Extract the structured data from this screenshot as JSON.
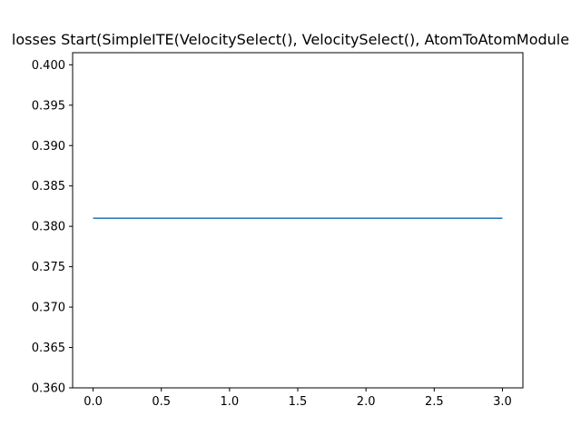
{
  "chart_data": {
    "type": "line",
    "title": "losses Start(SimpleITE(VelocitySelect(), VelocitySelect(), AtomToAtomModule",
    "xlabel": "",
    "ylabel": "",
    "xlim": [
      -0.15,
      3.15
    ],
    "ylim": [
      0.36,
      0.4015
    ],
    "x_ticks": [
      0.0,
      0.5,
      1.0,
      1.5,
      2.0,
      2.5,
      3.0
    ],
    "x_tick_labels": [
      "0.0",
      "0.5",
      "1.0",
      "1.5",
      "2.0",
      "2.5",
      "3.0"
    ],
    "y_ticks": [
      0.36,
      0.365,
      0.37,
      0.375,
      0.38,
      0.385,
      0.39,
      0.395,
      0.4
    ],
    "y_tick_labels": [
      "0.360",
      "0.365",
      "0.370",
      "0.375",
      "0.380",
      "0.385",
      "0.390",
      "0.395",
      "0.400"
    ],
    "grid": false,
    "legend": "none",
    "series": [
      {
        "name": "losses",
        "color": "#1f77b4",
        "x": [
          0,
          1,
          2,
          3
        ],
        "y": [
          0.381,
          0.381,
          0.381,
          0.381
        ]
      }
    ]
  }
}
